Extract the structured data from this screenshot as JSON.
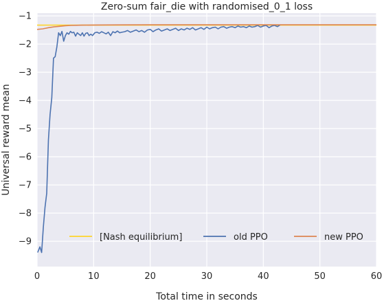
{
  "chart_data": {
    "type": "line",
    "title": "Zero-sum fair_die with randomised_0_1 loss",
    "xlabel": "Total time in seconds",
    "ylabel": "Universal reward mean",
    "xlim": [
      0,
      60
    ],
    "ylim": [
      -9.9,
      -0.9
    ],
    "xticks": [
      0,
      10,
      20,
      30,
      40,
      50,
      60
    ],
    "yticks": [
      -9,
      -8,
      -7,
      -6,
      -5,
      -4,
      -3,
      -2,
      -1
    ],
    "grid": true,
    "legend": {
      "placement": "lower-center",
      "columns": 3
    },
    "series": [
      {
        "name": "[Nash equilibrium]",
        "color": "#FFD42A",
        "x": [
          0,
          60
        ],
        "y": [
          -1.33,
          -1.33
        ]
      },
      {
        "name": "old PPO",
        "color": "#4C72B0",
        "x": [
          0.1,
          0.5,
          0.8,
          1.1,
          1.4,
          1.7,
          2.0,
          2.3,
          2.6,
          2.9,
          3.2,
          3.5,
          3.8,
          4.1,
          4.4,
          4.7,
          5.0,
          5.3,
          5.6,
          5.9,
          6.2,
          6.5,
          6.8,
          7.1,
          7.4,
          7.7,
          8.0,
          8.3,
          8.6,
          8.9,
          9.2,
          9.5,
          9.8,
          10.2,
          10.6,
          11.0,
          11.4,
          11.8,
          12.2,
          12.6,
          13.0,
          13.4,
          13.8,
          14.2,
          14.6,
          15.0,
          15.5,
          16.0,
          16.5,
          17.0,
          17.5,
          18.0,
          18.5,
          19.0,
          19.5,
          20.0,
          20.5,
          21.0,
          21.5,
          22.0,
          22.5,
          23.0,
          23.5,
          24.0,
          24.5,
          25.0,
          25.5,
          26.0,
          26.5,
          27.0,
          27.5,
          28.0,
          28.5,
          29.0,
          29.5,
          30.0,
          30.5,
          31.0,
          31.5,
          32.0,
          32.5,
          33.0,
          33.5,
          34.0,
          34.5,
          35.0,
          35.5,
          36.0,
          36.5,
          37.0,
          37.5,
          38.0,
          38.5,
          39.0,
          39.5,
          40.0,
          40.5,
          41.0,
          41.5,
          42.0,
          42.5,
          43.0
        ],
        "y": [
          -9.4,
          -9.2,
          -9.4,
          -8.5,
          -7.8,
          -7.3,
          -5.4,
          -4.5,
          -3.9,
          -2.5,
          -2.45,
          -2.1,
          -1.6,
          -1.7,
          -1.55,
          -1.9,
          -1.7,
          -1.6,
          -1.65,
          -1.55,
          -1.6,
          -1.58,
          -1.72,
          -1.6,
          -1.65,
          -1.7,
          -1.6,
          -1.72,
          -1.62,
          -1.6,
          -1.7,
          -1.65,
          -1.7,
          -1.6,
          -1.58,
          -1.62,
          -1.56,
          -1.6,
          -1.64,
          -1.58,
          -1.7,
          -1.56,
          -1.6,
          -1.54,
          -1.6,
          -1.58,
          -1.56,
          -1.52,
          -1.58,
          -1.54,
          -1.5,
          -1.56,
          -1.52,
          -1.58,
          -1.5,
          -1.48,
          -1.56,
          -1.5,
          -1.46,
          -1.54,
          -1.5,
          -1.46,
          -1.52,
          -1.48,
          -1.44,
          -1.52,
          -1.46,
          -1.5,
          -1.44,
          -1.48,
          -1.42,
          -1.5,
          -1.46,
          -1.42,
          -1.48,
          -1.4,
          -1.46,
          -1.42,
          -1.4,
          -1.46,
          -1.4,
          -1.38,
          -1.44,
          -1.4,
          -1.38,
          -1.42,
          -1.36,
          -1.4,
          -1.38,
          -1.42,
          -1.36,
          -1.4,
          -1.38,
          -1.34,
          -1.4,
          -1.36,
          -1.34,
          -1.42,
          -1.36,
          -1.34,
          -1.38,
          -1.32
        ]
      },
      {
        "name": "new PPO",
        "color": "#DD8452",
        "x": [
          0,
          1,
          2,
          3,
          4,
          5,
          6,
          7,
          8,
          10,
          12,
          15,
          20,
          25,
          30,
          35,
          40,
          45,
          50,
          55,
          60
        ],
        "y": [
          -1.48,
          -1.46,
          -1.42,
          -1.39,
          -1.37,
          -1.35,
          -1.34,
          -1.335,
          -1.33,
          -1.325,
          -1.322,
          -1.32,
          -1.318,
          -1.318,
          -1.318,
          -1.318,
          -1.318,
          -1.318,
          -1.318,
          -1.318,
          -1.318
        ]
      }
    ]
  }
}
